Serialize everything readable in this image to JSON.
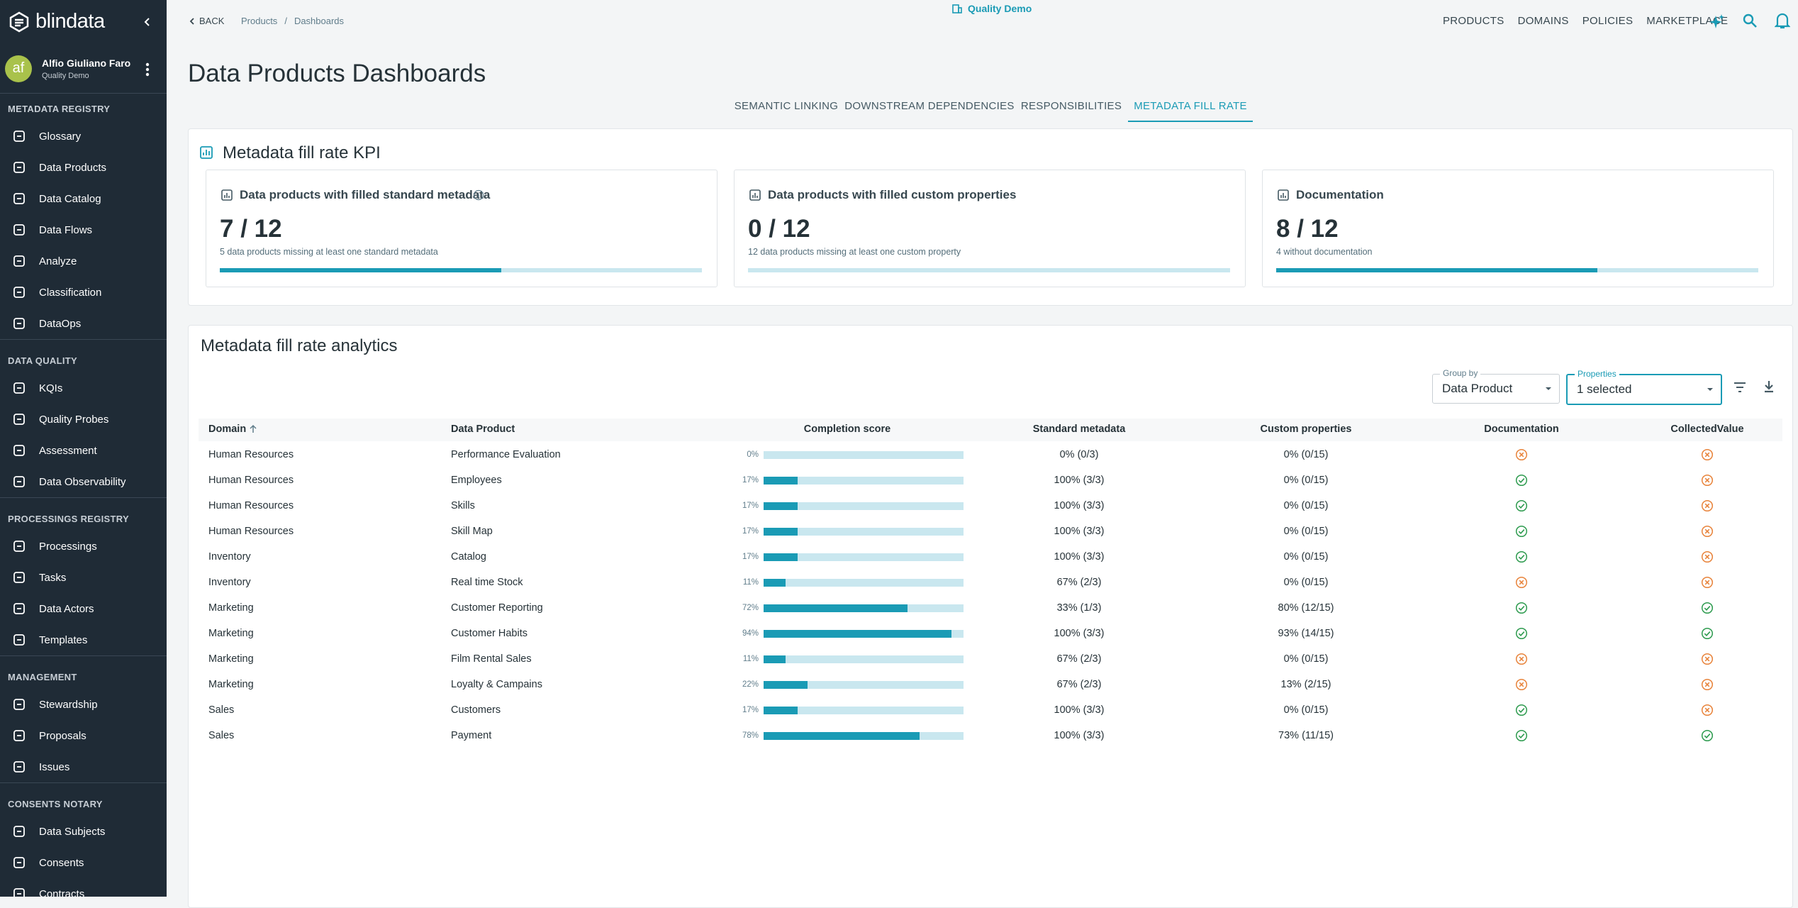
{
  "brand": "blindata",
  "user": {
    "initials": "af",
    "name": "Alfio Giuliano Faro",
    "tenant": "Quality Demo"
  },
  "sidebar": {
    "sections": [
      {
        "title": "METADATA REGISTRY",
        "items": [
          "Glossary",
          "Data Products",
          "Data Catalog",
          "Data Flows",
          "Analyze",
          "Classification",
          "DataOps"
        ]
      },
      {
        "title": "DATA QUALITY",
        "items": [
          "KQIs",
          "Quality Probes",
          "Assessment",
          "Data Observability"
        ]
      },
      {
        "title": "PROCESSINGS REGISTRY",
        "items": [
          "Processings",
          "Tasks",
          "Data Actors",
          "Templates"
        ]
      },
      {
        "title": "MANAGEMENT",
        "items": [
          "Stewardship",
          "Proposals",
          "Issues"
        ]
      },
      {
        "title": "CONSENTS NOTARY",
        "items": [
          "Data Subjects",
          "Consents",
          "Contracts"
        ]
      }
    ]
  },
  "header": {
    "back": "BACK",
    "breadcrumb": [
      "Products",
      "/",
      "Dashboards"
    ],
    "tenant": "Quality Demo",
    "nav": [
      "PRODUCTS",
      "DOMAINS",
      "POLICIES",
      "MARKETPLACE"
    ]
  },
  "page": {
    "title": "Data Products Dashboards",
    "tabs": [
      "SEMANTIC LINKING",
      "DOWNSTREAM DEPENDENCIES",
      "RESPONSIBILITIES",
      "METADATA FILL RATE"
    ],
    "active_tab": 3
  },
  "kpi": {
    "title": "Metadata fill rate KPI",
    "cards": [
      {
        "title": "Data products with filled standard metadata",
        "score": {
          "text": "7 / 12",
          "filled": 7,
          "total": 12
        },
        "note": "5 data products missing at least one standard metadata"
      },
      {
        "title": "Data products with filled custom properties",
        "score": {
          "text": "0 / 12",
          "filled": 0,
          "total": 12
        },
        "note": "12 data products missing at least one custom property"
      },
      {
        "title": "Documentation",
        "score": {
          "text": "8 / 12",
          "filled": 8,
          "total": 12
        },
        "note": "4 without documentation"
      }
    ]
  },
  "analytics": {
    "title": "Metadata fill rate analytics",
    "group_by": {
      "label": "Group by",
      "value": "Data Product"
    },
    "properties": {
      "label": "Properties",
      "value": "1 selected"
    },
    "table": {
      "columns": [
        "Domain",
        "Data Product",
        "Completion score",
        "Standard metadata",
        "Custom properties",
        "Documentation",
        "CollectedValue"
      ],
      "completion_range": [
        0,
        100
      ],
      "rows": [
        {
          "domain": "Human Resources",
          "product": "Performance Evaluation",
          "completion": {
            "value": 0,
            "label": "0%"
          },
          "standard": "0% (0/3)",
          "custom": "0% (0/15)",
          "documentation": false,
          "collected": false
        },
        {
          "domain": "Human Resources",
          "product": "Employees",
          "completion": {
            "value": 17,
            "label": "17%"
          },
          "standard": "100% (3/3)",
          "custom": "0% (0/15)",
          "documentation": true,
          "collected": false
        },
        {
          "domain": "Human Resources",
          "product": "Skills",
          "completion": {
            "value": 17,
            "label": "17%"
          },
          "standard": "100% (3/3)",
          "custom": "0% (0/15)",
          "documentation": true,
          "collected": false
        },
        {
          "domain": "Human Resources",
          "product": "Skill Map",
          "completion": {
            "value": 17,
            "label": "17%"
          },
          "standard": "100% (3/3)",
          "custom": "0% (0/15)",
          "documentation": true,
          "collected": false
        },
        {
          "domain": "Inventory",
          "product": "Catalog",
          "completion": {
            "value": 17,
            "label": "17%"
          },
          "standard": "100% (3/3)",
          "custom": "0% (0/15)",
          "documentation": true,
          "collected": false
        },
        {
          "domain": "Inventory",
          "product": "Real time Stock",
          "completion": {
            "value": 11,
            "label": "11%"
          },
          "standard": "67% (2/3)",
          "custom": "0% (0/15)",
          "documentation": false,
          "collected": false
        },
        {
          "domain": "Marketing",
          "product": "Customer Reporting",
          "completion": {
            "value": 72,
            "label": "72%"
          },
          "standard": "33% (1/3)",
          "custom": "80% (12/15)",
          "documentation": true,
          "collected": true
        },
        {
          "domain": "Marketing",
          "product": "Customer Habits",
          "completion": {
            "value": 94,
            "label": "94%"
          },
          "standard": "100% (3/3)",
          "custom": "93% (14/15)",
          "documentation": true,
          "collected": true
        },
        {
          "domain": "Marketing",
          "product": "Film Rental Sales",
          "completion": {
            "value": 11,
            "label": "11%"
          },
          "standard": "67% (2/3)",
          "custom": "0% (0/15)",
          "documentation": false,
          "collected": false
        },
        {
          "domain": "Marketing",
          "product": "Loyalty & Campains",
          "completion": {
            "value": 22,
            "label": "22%"
          },
          "standard": "67% (2/3)",
          "custom": "13% (2/15)",
          "documentation": false,
          "collected": false
        },
        {
          "domain": "Sales",
          "product": "Customers",
          "completion": {
            "value": 17,
            "label": "17%"
          },
          "standard": "100% (3/3)",
          "custom": "0% (0/15)",
          "documentation": true,
          "collected": false
        },
        {
          "domain": "Sales",
          "product": "Payment",
          "completion": {
            "value": 78,
            "label": "78%"
          },
          "standard": "100% (3/3)",
          "custom": "73% (11/15)",
          "documentation": true,
          "collected": true
        }
      ]
    }
  }
}
